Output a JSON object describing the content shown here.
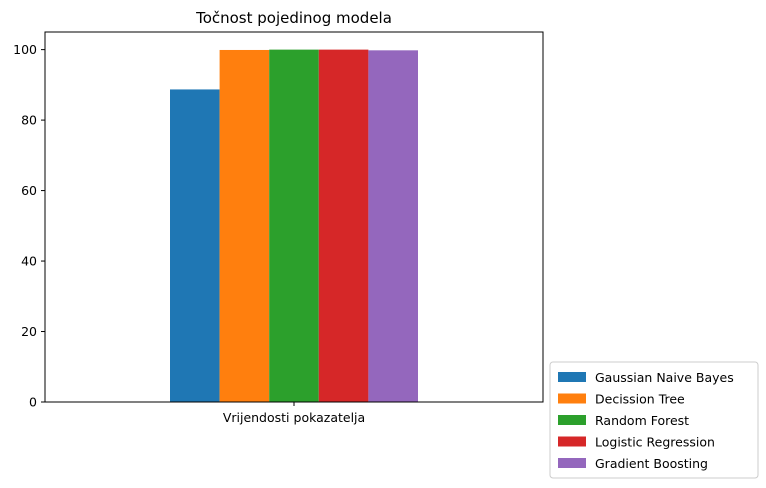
{
  "chart_data": {
    "type": "bar",
    "title": "Točnost pojedinog modela",
    "xlabel": "",
    "ylabel": "",
    "categories": [
      "Vrijendosti pokazatelja"
    ],
    "series": [
      {
        "name": "Gaussian Naive Bayes",
        "values": [
          88.7
        ],
        "color": "#1f77b4"
      },
      {
        "name": "Decission Tree",
        "values": [
          99.9
        ],
        "color": "#ff7f0e"
      },
      {
        "name": "Random Forest",
        "values": [
          100.0
        ],
        "color": "#2ca02c"
      },
      {
        "name": "Logistic Regression",
        "values": [
          100.0
        ],
        "color": "#d62728"
      },
      {
        "name": "Gradient Boosting",
        "values": [
          99.8
        ],
        "color": "#9467bd"
      }
    ],
    "ylim": [
      0,
      105
    ],
    "yticks": [
      "0",
      "20",
      "40",
      "60",
      "80",
      "100"
    ],
    "grid": false,
    "legend_position": "lower-right-outside"
  }
}
